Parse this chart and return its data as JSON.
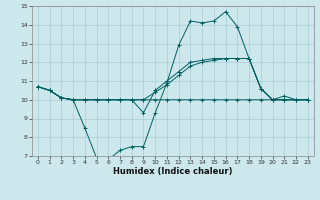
{
  "xlabel": "Humidex (Indice chaleur)",
  "bg_color": "#cce8ec",
  "grid_color": "#b0d0d8",
  "line_color": "#005f5f",
  "xlim": [
    -0.5,
    23.5
  ],
  "ylim": [
    7,
    15
  ],
  "xticks": [
    0,
    1,
    2,
    3,
    4,
    5,
    6,
    7,
    8,
    9,
    10,
    11,
    12,
    13,
    14,
    15,
    16,
    17,
    18,
    19,
    20,
    21,
    22,
    23
  ],
  "yticks": [
    7,
    8,
    9,
    10,
    11,
    12,
    13,
    14,
    15
  ],
  "series": [
    {
      "x": [
        0,
        1,
        2,
        3,
        4,
        5,
        6,
        7,
        8,
        9,
        10,
        11,
        12,
        13,
        14,
        15,
        16,
        17,
        18,
        19,
        20,
        21,
        22,
        23
      ],
      "y": [
        10.7,
        10.5,
        10.1,
        10.0,
        8.5,
        6.9,
        6.8,
        7.3,
        7.5,
        7.5,
        9.3,
        10.9,
        12.9,
        14.2,
        14.1,
        14.2,
        14.7,
        13.9,
        12.2,
        10.6,
        10.0,
        10.2,
        10.0,
        10.0
      ]
    },
    {
      "x": [
        0,
        1,
        2,
        3,
        4,
        5,
        6,
        7,
        8,
        9,
        10,
        11,
        12,
        13,
        14,
        15,
        16,
        17,
        18,
        19,
        20,
        21,
        22,
        23
      ],
      "y": [
        10.7,
        10.5,
        10.1,
        10.0,
        10.0,
        10.0,
        10.0,
        10.0,
        10.0,
        10.0,
        10.0,
        10.0,
        10.0,
        10.0,
        10.0,
        10.0,
        10.0,
        10.0,
        10.0,
        10.0,
        10.0,
        10.0,
        10.0,
        10.0
      ]
    },
    {
      "x": [
        0,
        1,
        2,
        3,
        4,
        5,
        6,
        7,
        8,
        9,
        10,
        11,
        12,
        13,
        14,
        15,
        16,
        17,
        18,
        19,
        20,
        21,
        22,
        23
      ],
      "y": [
        10.7,
        10.5,
        10.1,
        10.0,
        10.0,
        10.0,
        10.0,
        10.0,
        10.0,
        10.0,
        10.4,
        10.8,
        11.3,
        11.8,
        12.0,
        12.1,
        12.2,
        12.2,
        12.2,
        10.6,
        10.0,
        10.0,
        10.0,
        10.0
      ]
    },
    {
      "x": [
        0,
        1,
        2,
        3,
        4,
        5,
        6,
        7,
        8,
        9,
        10,
        11,
        12,
        13,
        14,
        15,
        16,
        17,
        18,
        19,
        20,
        21,
        22,
        23
      ],
      "y": [
        10.7,
        10.5,
        10.1,
        10.0,
        10.0,
        10.0,
        10.0,
        10.0,
        10.0,
        9.3,
        10.5,
        11.0,
        11.5,
        12.0,
        12.1,
        12.2,
        12.2,
        12.2,
        12.2,
        10.6,
        10.0,
        10.0,
        10.0,
        10.0
      ]
    }
  ]
}
